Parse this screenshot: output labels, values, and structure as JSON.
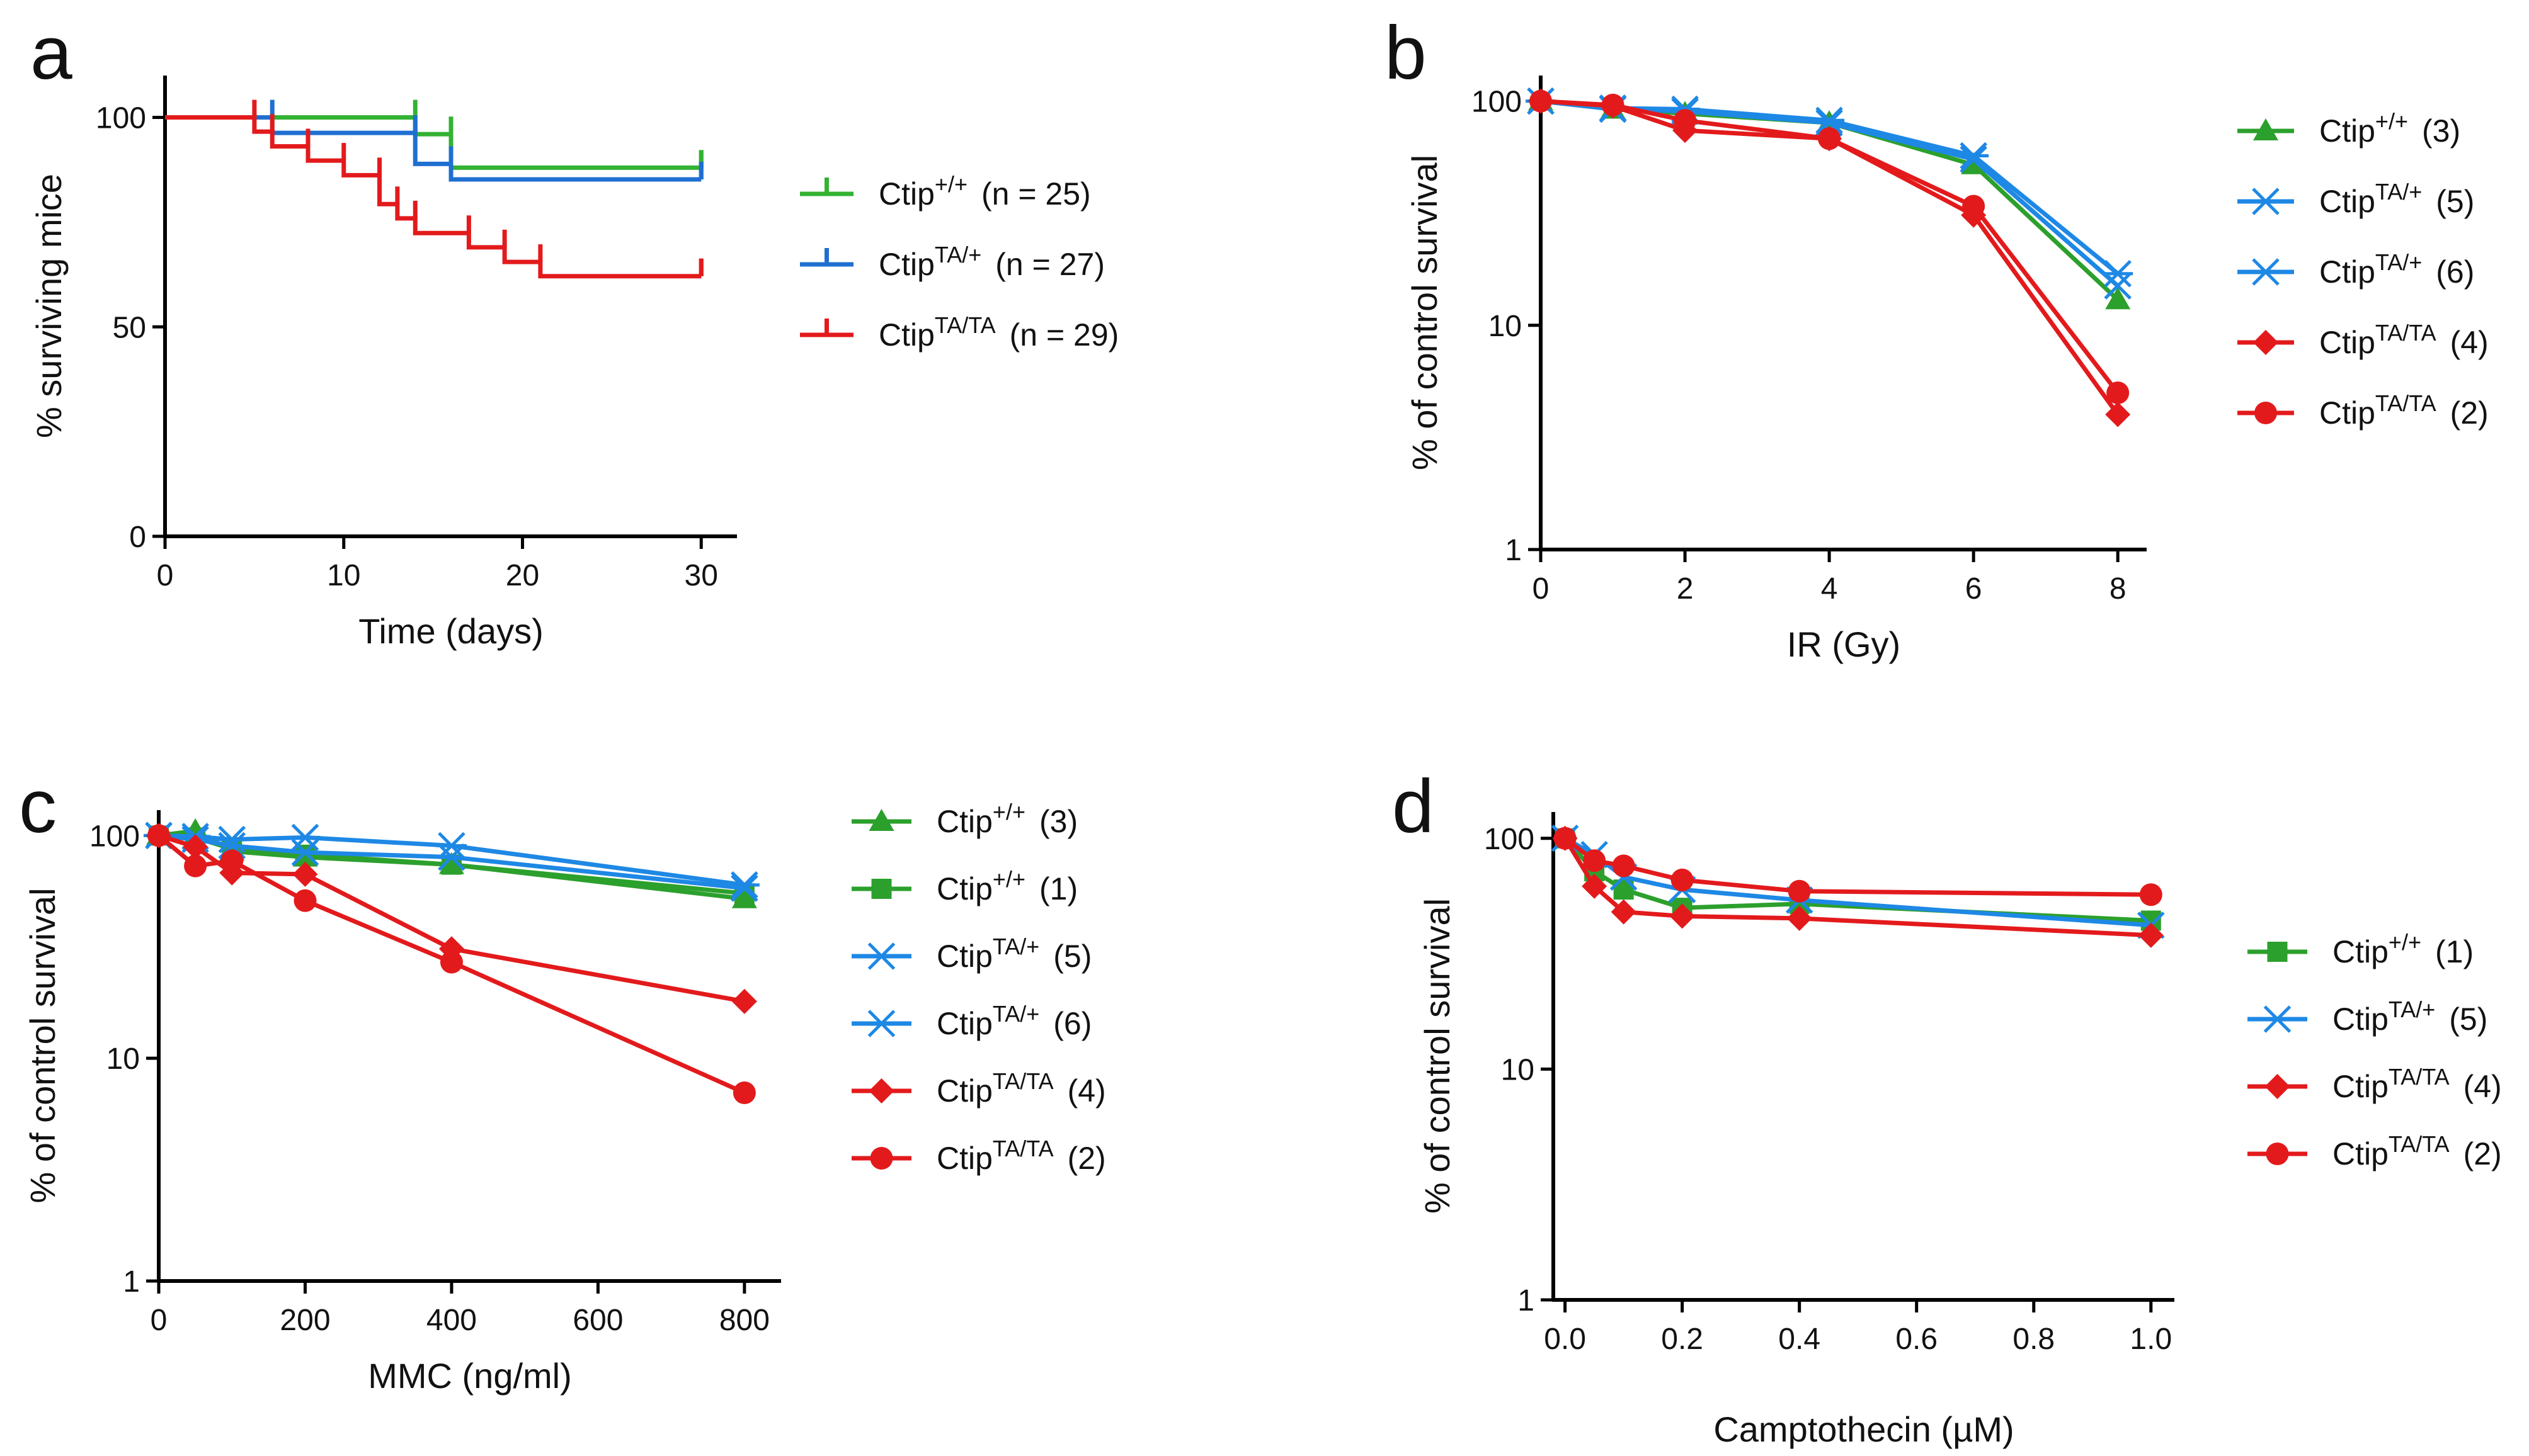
{
  "chart_data": [
    {
      "panel": "a",
      "type": "line",
      "subtype": "kaplan-meier",
      "title": "",
      "xlabel": "Time (days)",
      "ylabel": "% surviving mice",
      "xlim": [
        0,
        32
      ],
      "ylim": [
        0,
        110
      ],
      "yscale": "linear",
      "xticks": [
        0,
        10,
        20,
        30
      ],
      "xtick_labels": [
        "0",
        "10",
        "20",
        "30"
      ],
      "yticks": [
        0,
        50,
        100
      ],
      "ytick_labels": [
        "0",
        "50",
        "100"
      ],
      "legend_position": "right",
      "series": [
        {
          "name": "Ctip",
          "sup": "+/+",
          "n_label": "(n = 25)",
          "color": "#33b233",
          "steps": [
            [
              0,
              100
            ],
            [
              14,
              96
            ],
            [
              16,
              88
            ],
            [
              30,
              88
            ]
          ]
        },
        {
          "name": "Ctip",
          "sup": "TA/+",
          "n_label": "(n = 27)",
          "color": "#1f6fd1",
          "steps": [
            [
              0,
              100
            ],
            [
              6,
              96.3
            ],
            [
              14,
              88.9
            ],
            [
              16,
              85.2
            ],
            [
              30,
              85.2
            ]
          ]
        },
        {
          "name": "Ctip",
          "sup": "TA/TA",
          "n_label": "(n = 29)",
          "color": "#e31a1c",
          "steps": [
            [
              0,
              100
            ],
            [
              5,
              96.6
            ],
            [
              6,
              93.1
            ],
            [
              8,
              89.7
            ],
            [
              10,
              86.2
            ],
            [
              12,
              79.3
            ],
            [
              13,
              75.9
            ],
            [
              14,
              72.4
            ],
            [
              17,
              69
            ],
            [
              19,
              65.5
            ],
            [
              21,
              62.1
            ],
            [
              30,
              62.1
            ]
          ]
        }
      ]
    },
    {
      "panel": "b",
      "type": "line",
      "title": "",
      "xlabel": "IR (Gy)",
      "ylabel": "% of control survival",
      "xlim": [
        0,
        8.4
      ],
      "ylim": [
        1,
        130
      ],
      "yscale": "log",
      "xticks": [
        0,
        2,
        4,
        6,
        8
      ],
      "xtick_labels": [
        "0",
        "2",
        "4",
        "6",
        "8"
      ],
      "yticks": [
        1,
        10,
        100
      ],
      "ytick_labels": [
        "1",
        "10",
        "100"
      ],
      "legend_position": "right",
      "series": [
        {
          "name": "Ctip",
          "sup": "+/+",
          "count": "(3)",
          "color": "#2ca02c",
          "marker": "triangle",
          "x": [
            0,
            1,
            2,
            4,
            6,
            8
          ],
          "y": [
            100,
            92,
            88,
            80,
            52,
            13
          ]
        },
        {
          "name": "Ctip",
          "sup": "TA/+",
          "count": "(5)",
          "color": "#1e88e5",
          "marker": "x",
          "x": [
            0,
            1,
            2,
            4,
            6,
            8
          ],
          "y": [
            100,
            92,
            90,
            80,
            55,
            15
          ]
        },
        {
          "name": "Ctip",
          "sup": "TA/+",
          "count": "(6)",
          "color": "#1e88e5",
          "marker": "asterisk",
          "x": [
            0,
            1,
            2,
            4,
            6,
            8
          ],
          "y": [
            100,
            93,
            92,
            82,
            57,
            17
          ]
        },
        {
          "name": "Ctip",
          "sup": "TA/TA",
          "count": "(4)",
          "color": "#e31a1c",
          "marker": "diamond",
          "x": [
            0,
            1,
            2,
            4,
            6,
            8
          ],
          "y": [
            100,
            95,
            74,
            68,
            31,
            4
          ]
        },
        {
          "name": "Ctip",
          "sup": "TA/TA",
          "count": "(2)",
          "color": "#e31a1c",
          "marker": "circle",
          "x": [
            0,
            1,
            2,
            4,
            6,
            8
          ],
          "y": [
            100,
            96,
            82,
            68,
            34,
            5
          ]
        }
      ]
    },
    {
      "panel": "c",
      "type": "line",
      "title": "",
      "xlabel": "MMC (ng/ml)",
      "ylabel": "% of control survival",
      "xlim": [
        0,
        850
      ],
      "ylim": [
        1,
        130
      ],
      "yscale": "log",
      "xticks": [
        0,
        200,
        400,
        600,
        800
      ],
      "xtick_labels": [
        "0",
        "200",
        "400",
        "600",
        "800"
      ],
      "yticks": [
        1,
        10,
        100
      ],
      "ytick_labels": [
        "1",
        "10",
        "100"
      ],
      "legend_position": "right",
      "series": [
        {
          "name": "Ctip",
          "sup": "+/+",
          "count": "(3)",
          "color": "#2ca02c",
          "marker": "triangle",
          "x": [
            0,
            50,
            100,
            200,
            400,
            800
          ],
          "y": [
            100,
            105,
            85,
            80,
            74,
            52
          ]
        },
        {
          "name": "Ctip",
          "sup": "+/+",
          "count": "(1)",
          "color": "#2ca02c",
          "marker": "square",
          "x": [
            0,
            50,
            100,
            200,
            400,
            800
          ],
          "y": [
            100,
            98,
            87,
            82,
            74,
            55
          ]
        },
        {
          "name": "Ctip",
          "sup": "TA/+",
          "count": "(5)",
          "color": "#1e88e5",
          "marker": "x",
          "x": [
            0,
            50,
            100,
            200,
            400,
            800
          ],
          "y": [
            100,
            96,
            90,
            84,
            80,
            58
          ]
        },
        {
          "name": "Ctip",
          "sup": "TA/+",
          "count": "(6)",
          "color": "#1e88e5",
          "marker": "asterisk",
          "x": [
            0,
            50,
            100,
            200,
            400,
            800
          ],
          "y": [
            100,
            99,
            96,
            98,
            90,
            60
          ]
        },
        {
          "name": "Ctip",
          "sup": "TA/TA",
          "count": "(4)",
          "color": "#e31a1c",
          "marker": "diamond",
          "x": [
            0,
            50,
            100,
            200,
            400,
            800
          ],
          "y": [
            100,
            89,
            68,
            67,
            31,
            18
          ]
        },
        {
          "name": "Ctip",
          "sup": "TA/TA",
          "count": "(2)",
          "color": "#e31a1c",
          "marker": "circle",
          "x": [
            0,
            50,
            100,
            200,
            400,
            800
          ],
          "y": [
            100,
            73,
            77,
            51,
            27,
            7
          ]
        }
      ]
    },
    {
      "panel": "d",
      "type": "line",
      "title": "",
      "xlabel": "Camptothecin (µM)",
      "ylabel": "% of control survival",
      "xlim": [
        -0.02,
        1.04
      ],
      "ylim": [
        1,
        130
      ],
      "yscale": "log",
      "xticks": [
        0,
        0.2,
        0.4,
        0.6,
        0.8,
        1.0
      ],
      "xtick_labels": [
        "0.0",
        "0.2",
        "0.4",
        "0.6",
        "0.8",
        "1.0"
      ],
      "yticks": [
        1,
        10,
        100
      ],
      "ytick_labels": [
        "1",
        "10",
        "100"
      ],
      "legend_position": "right",
      "series": [
        {
          "name": "Ctip",
          "sup": "+/+",
          "count": "(1)",
          "color": "#2ca02c",
          "marker": "square",
          "x": [
            0,
            0.05,
            0.1,
            0.2,
            0.4,
            1.0
          ],
          "y": [
            100,
            72,
            60,
            50,
            52,
            44
          ]
        },
        {
          "name": "Ctip",
          "sup": "TA/+",
          "count": "(5)",
          "color": "#1e88e5",
          "marker": "x",
          "x": [
            0,
            0.05,
            0.1,
            0.2,
            0.4,
            1.0
          ],
          "y": [
            100,
            85,
            68,
            60,
            54,
            42
          ]
        },
        {
          "name": "Ctip",
          "sup": "TA/TA",
          "count": "(4)",
          "color": "#e31a1c",
          "marker": "diamond",
          "x": [
            0,
            0.05,
            0.1,
            0.2,
            0.4,
            1.0
          ],
          "y": [
            100,
            62,
            48,
            46,
            45,
            38
          ]
        },
        {
          "name": "Ctip",
          "sup": "TA/TA",
          "count": "(2)",
          "color": "#e31a1c",
          "marker": "circle",
          "x": [
            0,
            0.05,
            0.1,
            0.2,
            0.4,
            1.0
          ],
          "y": [
            100,
            80,
            76,
            66,
            59,
            57
          ]
        }
      ]
    }
  ]
}
